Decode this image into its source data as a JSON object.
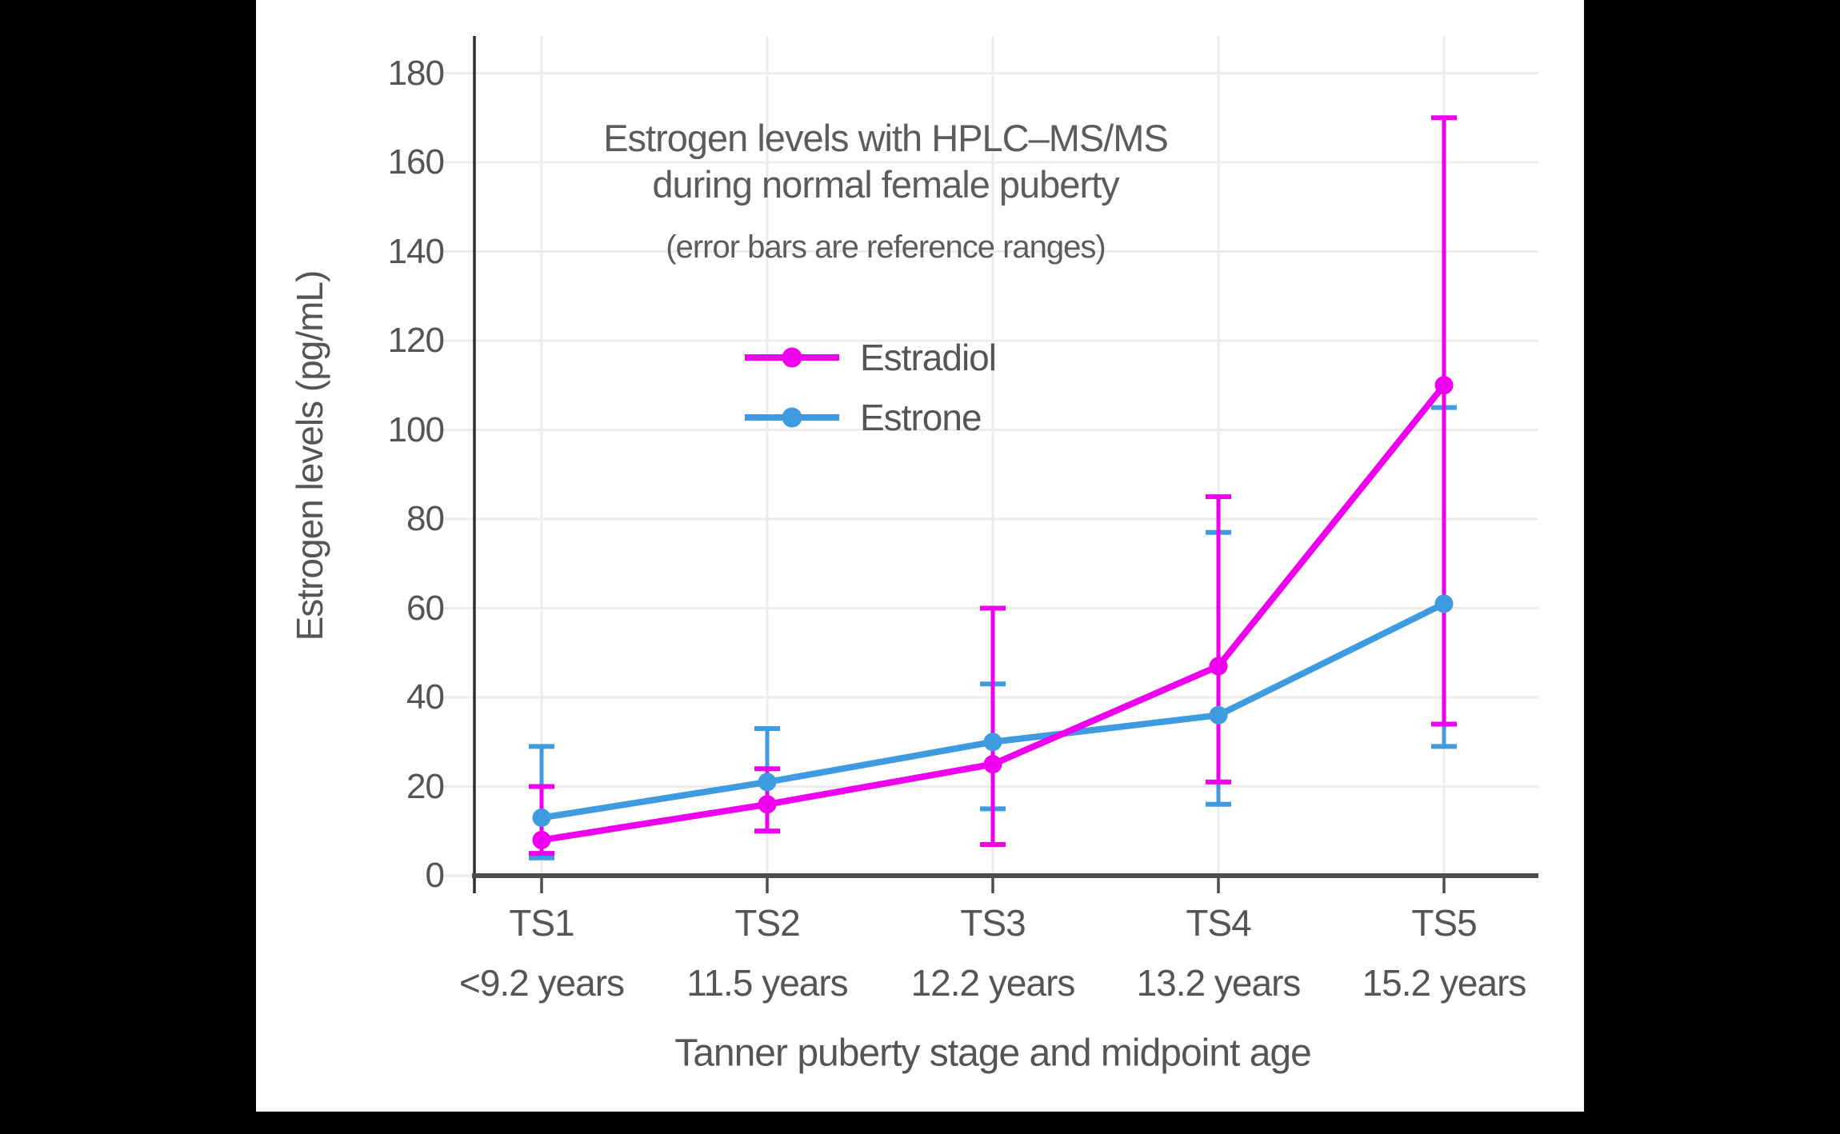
{
  "title": {
    "line1": "Estrogen levels with HPLC–MS/MS",
    "line2": "during normal female puberty",
    "subtitle": "(error bars are reference ranges)"
  },
  "chart_data": {
    "type": "line",
    "title": "Estrogen levels with HPLC–MS/MS during normal female puberty",
    "subtitle": "(error bars are reference ranges)",
    "categories": [
      "TS1",
      "TS2",
      "TS3",
      "TS4",
      "TS5"
    ],
    "category_sublabels": [
      "<9.2 years",
      "11.5 years",
      "12.2 years",
      "13.2 years",
      "15.2 years"
    ],
    "xlabel": "Tanner puberty stage and midpoint age",
    "ylabel": "Estrogen levels (pg/mL)",
    "ylim": [
      0,
      180
    ],
    "ytick_step": 20,
    "grid": true,
    "legend_position": "upper-center-inside",
    "series": [
      {
        "name": "Estradiol",
        "color": "#EE00EE",
        "values": [
          8,
          16,
          25,
          47,
          110
        ],
        "error_low": [
          5,
          10,
          7,
          21,
          34
        ],
        "error_high": [
          20,
          24,
          60,
          85,
          170
        ]
      },
      {
        "name": "Estrone",
        "color": "#3F9BE0",
        "values": [
          13,
          21,
          30,
          36,
          61
        ],
        "error_low": [
          4,
          10,
          15,
          16,
          29
        ],
        "error_high": [
          29,
          33,
          43,
          77,
          105
        ]
      }
    ],
    "colors": {
      "grid": "#ECECEC",
      "y_axis": "#2d2d2d",
      "x_axis": "#4d4d4d",
      "text": "#555555",
      "title_text": "#5c5c5c"
    }
  }
}
